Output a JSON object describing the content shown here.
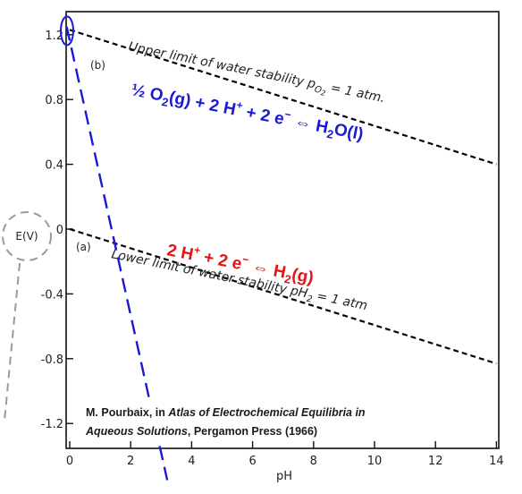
{
  "chart_data": {
    "type": "line",
    "xlabel": "pH",
    "ylabel": "E(V)",
    "xlim": [
      0,
      14
    ],
    "ylim": [
      -1.4,
      1.3
    ],
    "x_ticks": [
      0,
      2,
      4,
      6,
      8,
      10,
      12,
      14
    ],
    "x_tick_labels": [
      "0",
      "2",
      "4",
      "6",
      "8",
      "10",
      "12",
      "14"
    ],
    "y_ticks": [
      1.2,
      0.8,
      0.4,
      0,
      -0.4,
      -0.8,
      -1.2
    ],
    "y_tick_labels": [
      "1.2",
      "0.8",
      "0.4",
      "0",
      "-0.4",
      "-0.8",
      "-1.2"
    ],
    "grid": false,
    "series": [
      {
        "label": "(b)",
        "x": [
          0,
          14
        ],
        "y": [
          1.23,
          0.4
        ],
        "color": "#000000",
        "style": "dashed"
      },
      {
        "label": "(a)",
        "x": [
          0,
          14
        ],
        "y": [
          0,
          -0.83
        ],
        "color": "#000000",
        "style": "dashed"
      },
      {
        "x": [
          -0.1,
          3.2
        ],
        "y": [
          1.25,
          -1.55
        ],
        "color": "#1a1ad6",
        "style": "dashed"
      }
    ],
    "annotations": {
      "upper_limit": "Upper limit of water stability p",
      "upper_limit_sub": "O",
      "upper_limit_sub2": "2",
      "upper_limit_tail": " = 1 atm.",
      "lower_limit": "Lower limit of water stability pH",
      "lower_limit_sub": "2",
      "lower_limit_tail": " = 1 atm",
      "region_b": "(b)",
      "region_a": "(a)"
    },
    "equations": {
      "oxygen": {
        "a": "½ O",
        "b": "2",
        "c": "(g) + 2 H",
        "d": "+",
        "e": " + 2 e",
        "f": "−",
        "g": "  ⇔  H",
        "h": "2",
        "i": "O(l)",
        "color": "#1a1ad6"
      },
      "hydrogen": {
        "a": "2 H",
        "b": "+",
        "c": " + 2 e",
        "d": "−",
        "e": "  ⇔  H",
        "f": "2",
        "g": "(g)",
        "color": "#e31414"
      }
    }
  },
  "citation": {
    "pre": "M. Pourbaix, in ",
    "title": "Atlas of Electrochemical Equilibria in Aqueous Solutions",
    "post": ", Pergamon Press (1966)"
  }
}
